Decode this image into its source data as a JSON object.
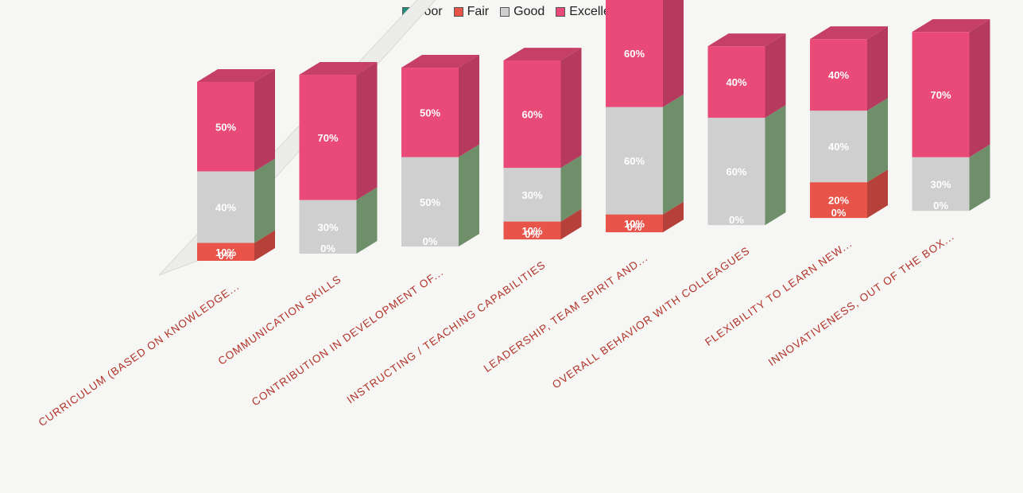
{
  "chart_data": {
    "type": "bar",
    "stacked": true,
    "three_d": true,
    "categories": [
      "CURRICULUM (BASED ON KNOWLEDGE...",
      "COMMUNICATION SKILLS",
      "CONTRIBUTION IN DEVELOPMENT OF...",
      "INSTRUCTING / TEACHING CAPABILITIES",
      "LEADERSHIP, TEAM SPIRIT AND...",
      "OVERALL BEHAVIOR WITH COLLEAGUES",
      "FLEXIBILITY TO LEARN NEW...",
      "INNOVATIVENESS, OUT OF THE BOX..."
    ],
    "series": [
      {
        "name": "Poor",
        "color": "#1f8f7a",
        "values": [
          0,
          0,
          0,
          0,
          0,
          0,
          0,
          0
        ]
      },
      {
        "name": "Fair",
        "color": "#e8534a",
        "values": [
          10,
          0,
          0,
          10,
          10,
          0,
          20,
          0
        ]
      },
      {
        "name": "Good",
        "color": "#cfcfcf",
        "values": [
          40,
          30,
          50,
          30,
          60,
          60,
          40,
          30
        ]
      },
      {
        "name": "Excellent",
        "color": "#e94a78",
        "values": [
          50,
          70,
          50,
          60,
          60,
          40,
          40,
          70
        ]
      }
    ],
    "labels": [
      [
        "0%",
        "10%",
        "40%",
        "50%"
      ],
      [
        "0%",
        "",
        "30%",
        "70%"
      ],
      [
        "0%",
        "",
        "50%",
        "50%"
      ],
      [
        "0%",
        "10%",
        "30%",
        "60%"
      ],
      [
        "0%",
        "10%",
        "60%",
        "60%"
      ],
      [
        "0%",
        "",
        "60%",
        "40%"
      ],
      [
        "0%",
        "20%",
        "40%",
        "40%"
      ],
      [
        "0%",
        "",
        "30%",
        "70%"
      ]
    ],
    "legend_position": "top-center",
    "label_color": "#b3342a",
    "value_label_color": "#ffffff"
  }
}
